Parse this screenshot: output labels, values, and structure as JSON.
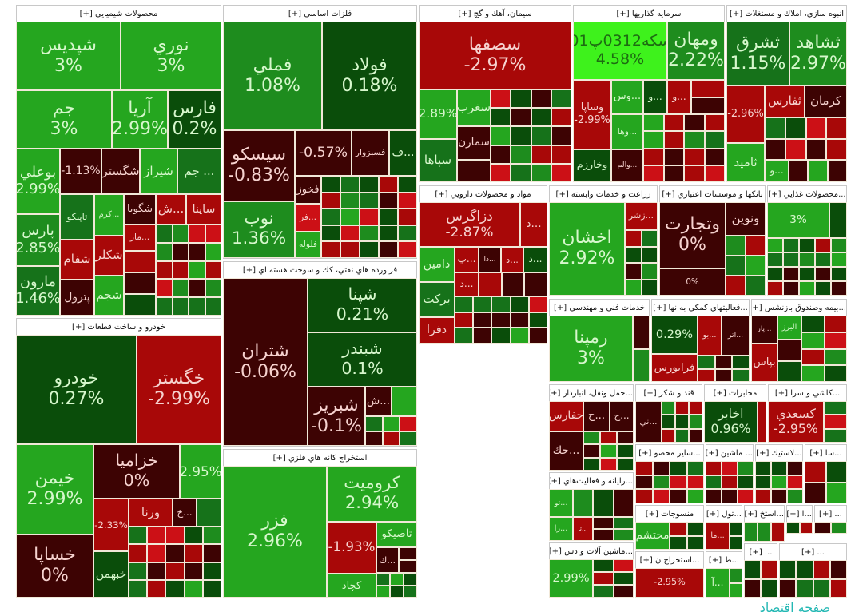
{
  "palette": {
    "dr": "#3d0303",
    "r": "#a80808",
    "br": "#cc1016",
    "dg": "#0a4d0a",
    "mg": "#16721a",
    "g": "#1e8c1e",
    "bg": "#25a61f",
    "lime": "#3ef21c"
  },
  "watermark": "صفحه اقتصاد",
  "sectors": [
    {
      "title": "محصولات شيميايي [+]",
      "tiles": [
        {
          "name": "شپديس",
          "change": "3%",
          "color": "bg"
        },
        {
          "name": "نوري",
          "change": "3%",
          "color": "bg"
        },
        {
          "name": "جم",
          "change": "3%",
          "color": "bg"
        },
        {
          "name": "آريا",
          "change": "2.99%",
          "color": "bg"
        },
        {
          "name": "فارس",
          "change": "0.2%",
          "color": "dg"
        },
        {
          "name": "بوعلي",
          "change": "2.99%",
          "color": "bg"
        },
        {
          "name": "پارس",
          "change": "2.85%",
          "color": "g"
        },
        {
          "name": "مارون",
          "change": "1.46%",
          "color": "mg"
        },
        {
          "name": "",
          "change": "-1.13%",
          "color": "dr"
        },
        {
          "name": "شگستر",
          "change": "",
          "color": "dr"
        },
        {
          "name": "شيراز",
          "change": "",
          "color": "bg"
        },
        {
          "name": "... جم",
          "change": "",
          "color": "mg"
        },
        {
          "name": "تاپيكو",
          "change": "",
          "color": "mg"
        },
        {
          "name": "...كرم",
          "change": "",
          "color": "bg"
        },
        {
          "name": "شگويا",
          "change": "",
          "color": "dr"
        },
        {
          "name": "...ش",
          "change": "",
          "color": "r"
        },
        {
          "name": "ساينا",
          "change": "",
          "color": "r"
        },
        {
          "name": "شفام",
          "change": "",
          "color": "r"
        },
        {
          "name": "شكلر",
          "change": "",
          "color": "r"
        },
        {
          "name": "پترول",
          "change": "",
          "color": "dr"
        },
        {
          "name": "شجم",
          "change": "",
          "color": "bg"
        },
        {
          "name": "...مار",
          "change": "",
          "color": "r"
        }
      ]
    },
    {
      "title": "فلزات اساسي [+]",
      "tiles": [
        {
          "name": "فملي",
          "change": "1.08%",
          "color": "g"
        },
        {
          "name": "فولاد",
          "change": "0.18%",
          "color": "dg"
        },
        {
          "name": "سيسكو",
          "change": "-0.83%",
          "color": "dr"
        },
        {
          "name": "",
          "change": "-0.57%",
          "color": "dr"
        },
        {
          "name": "فسبزوار",
          "change": "",
          "color": "dr"
        },
        {
          "name": "...ف",
          "change": "",
          "color": "dg"
        },
        {
          "name": "نوب",
          "change": "1.36%",
          "color": "g"
        },
        {
          "name": "فخوز",
          "change": "",
          "color": "dr"
        },
        {
          "name": "...فر",
          "change": "",
          "color": "br"
        },
        {
          "name": "فلوله",
          "change": "",
          "color": "bg"
        }
      ]
    },
    {
      "title": "فراورده هاي نفتي، كك و سوخت هسته اي [+]",
      "tiles": [
        {
          "name": "شتران",
          "change": "-0.06%",
          "color": "dr"
        },
        {
          "name": "شپنا",
          "change": "0.21%",
          "color": "dg"
        },
        {
          "name": "شبندر",
          "change": "0.1%",
          "color": "dg"
        },
        {
          "name": "شبريز",
          "change": "-0.1%",
          "color": "dr"
        },
        {
          "name": "...ش",
          "change": "",
          "color": "dr"
        }
      ]
    },
    {
      "title": "استخراج كانه هاي فلزي [+]",
      "tiles": [
        {
          "name": "فزر",
          "change": "2.96%",
          "color": "bg"
        },
        {
          "name": "كروميت",
          "change": "2.94%",
          "color": "bg"
        },
        {
          "name": "",
          "change": "-1.93%",
          "color": "r"
        },
        {
          "name": "تاصيكو",
          "change": "",
          "color": "bg"
        },
        {
          "name": "...ك",
          "change": "",
          "color": "dr"
        },
        {
          "name": "كچاد",
          "change": "",
          "color": "bg"
        }
      ]
    },
    {
      "title": "خودرو و ساخت قطعات [+]",
      "tiles": [
        {
          "name": "خودرو",
          "change": "0.27%",
          "color": "dg"
        },
        {
          "name": "خگستر",
          "change": "-2.99%",
          "color": "r"
        },
        {
          "name": "خيمن",
          "change": "2.99%",
          "color": "bg"
        },
        {
          "name": "خزاميا",
          "change": "0%",
          "color": "dr"
        },
        {
          "name": "",
          "change": "2.95%",
          "color": "bg"
        },
        {
          "name": "خساپا",
          "change": "0%",
          "color": "dr"
        },
        {
          "name": "",
          "change": "-2.33%",
          "color": "r"
        },
        {
          "name": "ورنا",
          "change": "",
          "color": "r"
        },
        {
          "name": "...خ",
          "change": "",
          "color": "dr"
        },
        {
          "name": "خبهمن",
          "change": "",
          "color": "dg"
        }
      ]
    },
    {
      "title": "سيمان، آهك و گچ [+]",
      "tiles": [
        {
          "name": "سصفها",
          "change": "-2.97%",
          "color": "r"
        },
        {
          "name": "",
          "change": "2.89%",
          "color": "bg"
        },
        {
          "name": "سغرب",
          "change": "",
          "color": "bg"
        },
        {
          "name": "سمازن",
          "change": "",
          "color": "dr"
        },
        {
          "name": "سپاها",
          "change": "",
          "color": "mg"
        }
      ]
    },
    {
      "title": "سرمايه گذاريها [+]",
      "tiles": [
        {
          "name": "سكه0312پ01",
          "change": "4.58%",
          "color": "lime"
        },
        {
          "name": "ومهان",
          "change": "2.22%",
          "color": "g"
        },
        {
          "name": "وساپا",
          "change": "-2.99%",
          "color": "r"
        },
        {
          "name": "...وس",
          "change": "",
          "color": "bg"
        },
        {
          "name": "...و",
          "change": "",
          "color": "dg"
        },
        {
          "name": "...و",
          "change": "",
          "color": "r"
        },
        {
          "name": "...وها",
          "change": "",
          "color": "bg"
        },
        {
          "name": "وخارزم",
          "change": "",
          "color": "dg"
        },
        {
          "name": "...والم",
          "change": "",
          "color": "dr"
        }
      ]
    },
    {
      "title": "انبوه سازي، املاك و مستغلات [+]",
      "tiles": [
        {
          "name": "ثشرق",
          "change": "1.15%",
          "color": "mg"
        },
        {
          "name": "ثشاهد",
          "change": "2.97%",
          "color": "g"
        },
        {
          "name": "",
          "change": "-2.96%",
          "color": "r"
        },
        {
          "name": "ثفارس",
          "change": "",
          "color": "r"
        },
        {
          "name": "كرمان",
          "change": "",
          "color": "dr"
        },
        {
          "name": "ثاميد",
          "change": "",
          "color": "bg"
        },
        {
          "name": "...و",
          "change": "",
          "color": "bg"
        }
      ]
    },
    {
      "title": "مواد و محصولات دارويي [+]",
      "tiles": [
        {
          "name": "دزاگرس",
          "change": "-2.87%",
          "color": "r"
        },
        {
          "name": "...د",
          "change": "",
          "color": "r"
        },
        {
          "name": "دامين",
          "change": "",
          "color": "bg"
        },
        {
          "name": "...پ",
          "change": "",
          "color": "r"
        },
        {
          "name": "...دا",
          "change": "",
          "color": "dr"
        },
        {
          "name": "...د",
          "change": "",
          "color": "r"
        },
        {
          "name": "...د",
          "change": "",
          "color": "dg"
        },
        {
          "name": "بركت",
          "change": "",
          "color": "mg"
        },
        {
          "name": "دفرا",
          "change": "",
          "color": "r"
        },
        {
          "name": "...د",
          "change": "",
          "color": "r"
        }
      ]
    },
    {
      "title": "زراعت و خدمات وابسته [+]",
      "tiles": [
        {
          "name": "اخشان",
          "change": "2.92%",
          "color": "bg"
        },
        {
          "name": "...زشر",
          "change": "",
          "color": "r"
        }
      ]
    },
    {
      "title": "بانكها و موسسات اعتباري [+]",
      "tiles": [
        {
          "name": "وتجارت",
          "change": "0%",
          "color": "dr"
        },
        {
          "name": "ونوين",
          "change": "",
          "color": "dr"
        },
        {
          "name": "",
          "change": "0%",
          "color": "dr"
        }
      ]
    },
    {
      "title": "...محصولات غذايي [+]",
      "tiles": [
        {
          "name": "",
          "change": "3%",
          "color": "bg"
        }
      ]
    },
    {
      "title": "خدمات فني و مهندسي [+]",
      "tiles": [
        {
          "name": "رمپنا",
          "change": "3%",
          "color": "bg"
        }
      ]
    },
    {
      "title": "...فعاليتهاي كمكي به نها [+]",
      "tiles": [
        {
          "name": "",
          "change": "0.29%",
          "color": "dg"
        },
        {
          "name": "...بو",
          "change": "",
          "color": "r"
        },
        {
          "name": "...اتر",
          "change": "",
          "color": "dr"
        },
        {
          "name": "فرابورس",
          "change": "",
          "color": "r"
        }
      ]
    },
    {
      "title": "...بيمه وصندوق بازنشس [+]",
      "tiles": [
        {
          "name": "...پار",
          "change": "",
          "color": "dr"
        },
        {
          "name": "البرز",
          "change": "",
          "color": "bg"
        },
        {
          "name": "بپاس",
          "change": "",
          "color": "r"
        }
      ]
    },
    {
      "title": "...حمل ونقل، انباردار [+]",
      "tiles": [
        {
          "name": "حفارس",
          "change": "",
          "color": "r"
        },
        {
          "name": "...ح",
          "change": "",
          "color": "dr"
        },
        {
          "name": "...ح",
          "change": "",
          "color": "dr"
        },
        {
          "name": "...حك",
          "change": "",
          "color": "dr"
        }
      ]
    },
    {
      "title": "قند و شكر [+]",
      "tiles": [
        {
          "name": "...ني",
          "change": "",
          "color": "dr"
        }
      ]
    },
    {
      "title": "مخابرات [+]",
      "tiles": [
        {
          "name": "اخابر",
          "change": "0.96%",
          "color": "dg"
        }
      ]
    },
    {
      "title": "...كاشي و سرا [+]",
      "tiles": [
        {
          "name": "كسعدي",
          "change": "-2.95%",
          "color": "r"
        }
      ]
    },
    {
      "title": "...رايانه و فعاليت‌هاي [+]",
      "tiles": [
        {
          "name": "...تو",
          "change": "",
          "color": "bg"
        },
        {
          "name": "...را",
          "change": "",
          "color": "bg"
        },
        {
          "name": "...تا",
          "change": "",
          "color": "r"
        }
      ]
    },
    {
      "title": "...ماشين آلات و دس [+]",
      "tiles": [
        {
          "name": "",
          "change": "2.99%",
          "color": "bg"
        }
      ]
    },
    {
      "title": "...ساير محصو [+]",
      "tiles": []
    },
    {
      "title": "منسوجات [+]",
      "tiles": [
        {
          "name": "محتشم",
          "change": "",
          "color": "bg"
        }
      ]
    },
    {
      "title": "...استخراج ن [+]",
      "tiles": [
        {
          "name": "",
          "change": "-2.95%",
          "color": "r"
        }
      ]
    },
    {
      "title": "... ماشين [+]",
      "tiles": []
    },
    {
      "title": "...لاستيك [+]",
      "tiles": []
    },
    {
      "title": "...سا [+]",
      "tiles": []
    },
    {
      "title": "...تول [+]",
      "tiles": [
        {
          "name": "...ما",
          "change": "",
          "color": "r"
        }
      ]
    },
    {
      "title": "...استخ [+]",
      "tiles": []
    },
    {
      "title": "...ا [+]",
      "tiles": []
    },
    {
      "title": "... [+]",
      "tiles": []
    },
    {
      "title": "...ط [+]",
      "tiles": [
        {
          "name": "...آ",
          "change": "",
          "color": "bg"
        }
      ]
    },
    {
      "title": "... [+]",
      "tiles": []
    },
    {
      "title": "... [+]",
      "tiles": []
    }
  ]
}
